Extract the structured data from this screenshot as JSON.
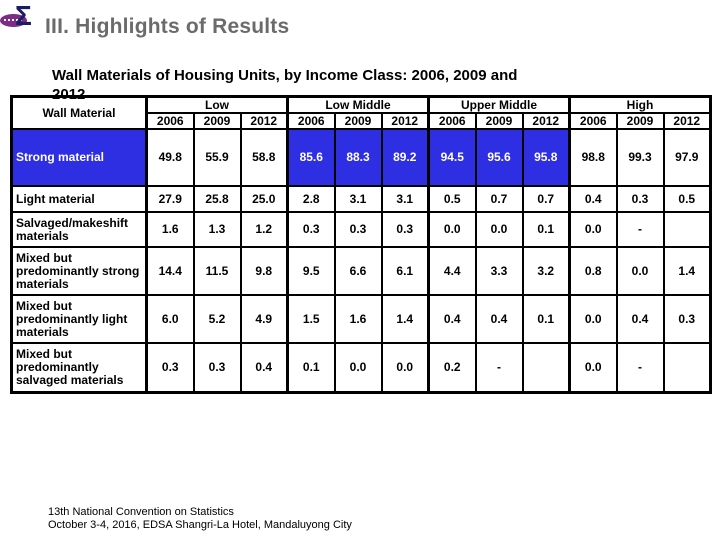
{
  "slide": {
    "title": "III. Highlights of Results",
    "subtitle_line1": "Wall Materials of Housing Units, by Income Class: 2006, 2009 and",
    "subtitle_line2": "2012"
  },
  "table": {
    "corner_header": "Wall Material",
    "groups": [
      {
        "label": "Low"
      },
      {
        "label": "Low Middle"
      },
      {
        "label": "Upper Middle"
      },
      {
        "label": "High"
      }
    ],
    "year_row": [
      "2006",
      "2009",
      "2012",
      "2006",
      "2009",
      "2012",
      "2006",
      "2009",
      "2012",
      "2006",
      "2009",
      "2012"
    ],
    "highlight_color": "#2e2ee2",
    "rows": [
      {
        "label": "Strong material",
        "highlight_label": true,
        "highlight_cols": [
          3,
          4,
          5,
          6,
          7,
          8
        ],
        "values": [
          "49.8",
          "55.9",
          "58.8",
          "85.6",
          "88.3",
          "89.2",
          "94.5",
          "95.6",
          "95.8",
          "98.8",
          "99.3",
          "97.9"
        ]
      },
      {
        "label": "Light material",
        "highlight_label": false,
        "highlight_cols": [],
        "values": [
          "27.9",
          "25.8",
          "25.0",
          "2.8",
          "3.1",
          "3.1",
          "0.5",
          "0.7",
          "0.7",
          "0.4",
          "0.3",
          "0.5"
        ]
      },
      {
        "label": "Salvaged/makeshift materials",
        "highlight_label": false,
        "highlight_cols": [],
        "values": [
          "1.6",
          "1.3",
          "1.2",
          "0.3",
          "0.3",
          "0.3",
          "0.0",
          "0.0",
          "0.1",
          "0.0",
          "-",
          ""
        ]
      },
      {
        "label": "Mixed but predominantly strong materials",
        "highlight_label": false,
        "highlight_cols": [],
        "values": [
          "14.4",
          "11.5",
          "9.8",
          "9.5",
          "6.6",
          "6.1",
          "4.4",
          "3.3",
          "3.2",
          "0.8",
          "0.0",
          "1.4"
        ]
      },
      {
        "label": "Mixed but predominantly light materials",
        "highlight_label": false,
        "highlight_cols": [],
        "values": [
          "6.0",
          "5.2",
          "4.9",
          "1.5",
          "1.6",
          "1.4",
          "0.4",
          "0.4",
          "0.1",
          "0.0",
          "0.4",
          "0.3"
        ]
      },
      {
        "label": "Mixed but predominantly salvaged materials",
        "highlight_label": false,
        "highlight_cols": [],
        "values": [
          "0.3",
          "0.3",
          "0.4",
          "0.1",
          "0.0",
          "0.0",
          "0.2",
          "-",
          "",
          "0.0",
          "-",
          ""
        ]
      }
    ]
  },
  "footer": {
    "line1": "13th National Convention on Statistics",
    "line2": "October 3-4, 2016, EDSA Shangri-La Hotel, Mandaluyong City",
    "logo_glyph": "Σ"
  }
}
